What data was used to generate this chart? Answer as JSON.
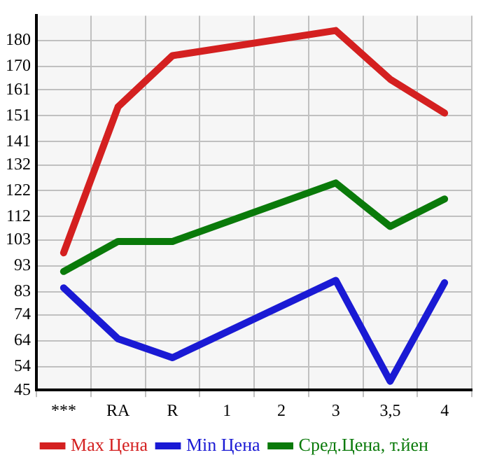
{
  "chart_data": {
    "type": "line",
    "categories": [
      "***",
      "RA",
      "R",
      "1",
      "2",
      "3",
      "3,5",
      "4"
    ],
    "series": [
      {
        "name": "Max Цена",
        "color": "#d42020",
        "values": [
          98.0,
          154.4,
          174.2,
          null,
          null,
          183.9,
          165.1,
          152.0
        ]
      },
      {
        "name": "Min Цена",
        "color": "#1a1ad4",
        "values": [
          84.5,
          64.8,
          57.5,
          null,
          null,
          87.4,
          48.4,
          86.5
        ]
      },
      {
        "name": "Сред.Цена, т.йен",
        "color": "#0a7a0a",
        "values": [
          90.8,
          102.4,
          102.4,
          null,
          null,
          125.0,
          108.2,
          118.8
        ]
      }
    ],
    "ylim": [
      45,
      189.64
    ],
    "yticks": [
      45,
      54,
      64,
      74,
      83,
      93,
      103,
      112,
      122,
      132,
      141,
      151,
      161,
      170,
      180
    ],
    "grid": true,
    "legend": "bottom",
    "marker": "none",
    "line_style": "solid"
  }
}
